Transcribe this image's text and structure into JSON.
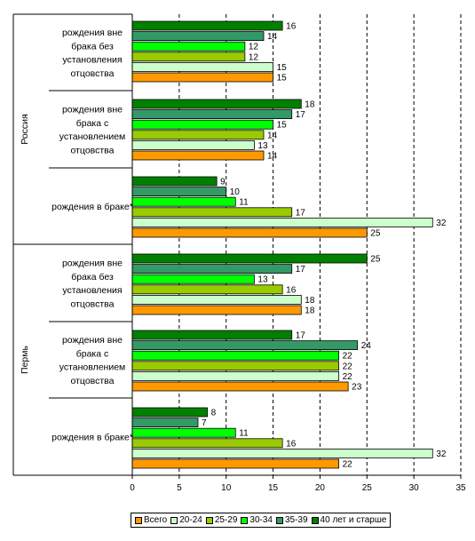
{
  "chart_data": {
    "type": "bar",
    "orientation": "horizontal",
    "xlim": [
      0,
      35
    ],
    "xticks": [
      0,
      5,
      10,
      15,
      20,
      25,
      30,
      35
    ],
    "grid": "vertical dashed",
    "legend_position": "bottom",
    "regions": [
      {
        "name": "Россия",
        "categories": [
          "рождения вне брака без установления отцовства",
          "рождения вне брака с установлением отцовства",
          "рождения в браке*"
        ]
      },
      {
        "name": "Пермь",
        "categories": [
          "рождения вне брака без установления отцовства",
          "рождения вне брака с установлением отцовства",
          "рождения в браке*"
        ]
      }
    ],
    "groups": [
      {
        "region": "Россия",
        "lines": [
          "рождения вне",
          "брака без",
          "установления",
          "отцовства"
        ]
      },
      {
        "region": "Россия",
        "lines": [
          "рождения вне",
          "брака с",
          "установлением",
          "отцовства"
        ]
      },
      {
        "region": "Россия",
        "lines": [
          "рождения в браке*"
        ]
      },
      {
        "region": "Пермь",
        "lines": [
          "рождения вне",
          "брака без",
          "установления",
          "отцовства"
        ]
      },
      {
        "region": "Пермь",
        "lines": [
          "рождения вне",
          "брака с",
          "установлением",
          "отцовства"
        ]
      },
      {
        "region": "Пермь",
        "lines": [
          "рождения в браке*"
        ]
      }
    ],
    "series": [
      {
        "name": "Всего",
        "color": "#FF9900",
        "values": [
          15,
          14,
          25,
          18,
          23,
          22
        ]
      },
      {
        "name": "20-24",
        "color": "#CCFFCC",
        "values": [
          15,
          13,
          32,
          18,
          22,
          32
        ]
      },
      {
        "name": "25-29",
        "color": "#99CC00",
        "values": [
          12,
          14,
          17,
          16,
          22,
          16
        ]
      },
      {
        "name": "30-34",
        "color": "#00FF00",
        "values": [
          12,
          15,
          11,
          13,
          22,
          11
        ]
      },
      {
        "name": "35-39",
        "color": "#339966",
        "values": [
          14,
          17,
          10,
          17,
          24,
          7
        ]
      },
      {
        "name": "40 лет и старше",
        "color": "#008000",
        "values": [
          16,
          18,
          9,
          25,
          17,
          8
        ]
      }
    ]
  }
}
